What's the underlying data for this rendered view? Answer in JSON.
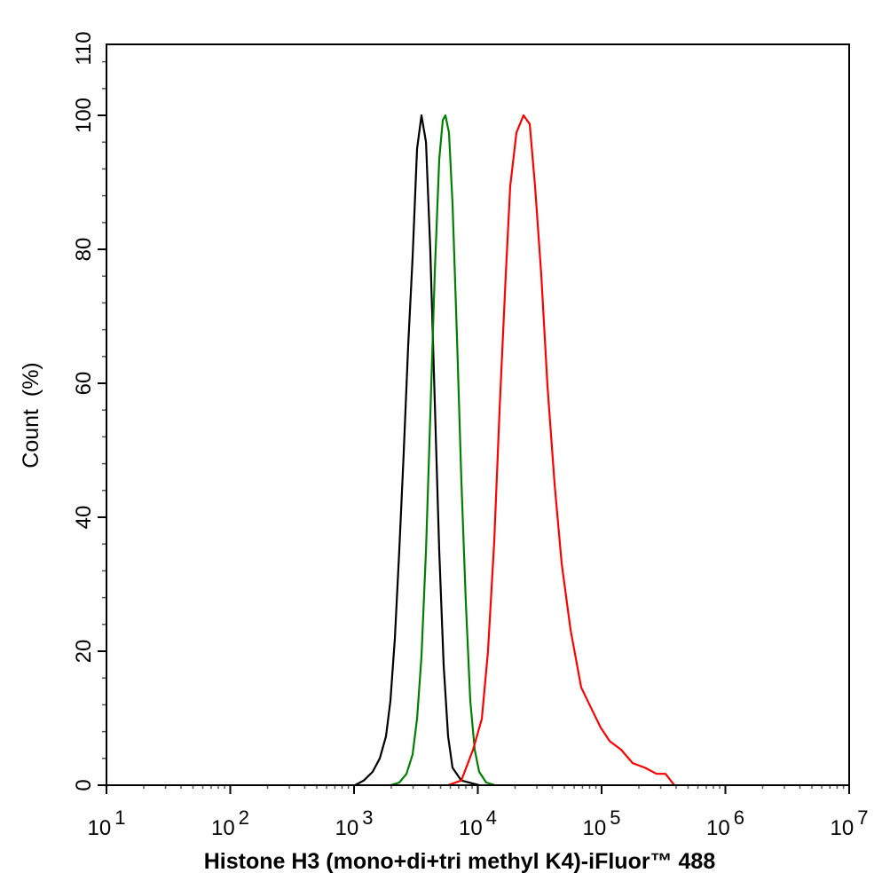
{
  "chart_data": {
    "type": "line",
    "title": "",
    "xlabel": "Histone H3 (mono+di+tri methyl K4)-iFluor™ 488",
    "ylabel": "Count  (%)",
    "xscale": "log",
    "xlim": [
      10,
      10000000
    ],
    "ylim": [
      0,
      110
    ],
    "x_ticks": [
      {
        "base": "10",
        "exp": "1",
        "value": 10
      },
      {
        "base": "10",
        "exp": "2",
        "value": 100
      },
      {
        "base": "10",
        "exp": "3",
        "value": 1000
      },
      {
        "base": "10",
        "exp": "4",
        "value": 10000
      },
      {
        "base": "10",
        "exp": "5",
        "value": 100000
      },
      {
        "base": "10",
        "exp": "6",
        "value": 1000000
      },
      {
        "base": "10",
        "exp": "7",
        "value": 10000000
      }
    ],
    "y_ticks": [
      "0",
      "20",
      "40",
      "60",
      "80",
      "100",
      "110"
    ],
    "grid": false,
    "legend": "none",
    "series": [
      {
        "color": "#000000",
        "x": [
          1016,
          1199,
          1415,
          1614,
          1811,
          1968,
          2138,
          2322,
          2520,
          2735,
          2972,
          3228,
          3508,
          3811,
          4130,
          4487,
          4875,
          5297,
          5754,
          6250,
          7362,
          10250
        ],
        "y": [
          0,
          0.7,
          2.0,
          4.0,
          7.3,
          12.6,
          21.9,
          35.1,
          49.7,
          65.6,
          78.8,
          95,
          100,
          96,
          80,
          57.6,
          35,
          17.9,
          7.3,
          2.6,
          0.7,
          0
        ]
      },
      {
        "color": "#008000",
        "x": [
          1968,
          2322,
          2651,
          2972,
          3228,
          3508,
          3811,
          4130,
          4487,
          4875,
          5210,
          5472,
          5846,
          6250,
          6790,
          7362,
          8000,
          8690,
          9440,
          10250,
          11700,
          13800
        ],
        "y": [
          0,
          0.4,
          1.7,
          4.6,
          9.9,
          19.2,
          35.1,
          55,
          76.2,
          93.4,
          99.3,
          100,
          97.4,
          86.8,
          66.9,
          45.7,
          27.2,
          12.6,
          5.3,
          2.0,
          0.4,
          0
        ]
      },
      {
        "color": "#ff0000",
        "x": [
          5754,
          7362,
          9140,
          10770,
          12080,
          13580,
          15000,
          16830,
          18280,
          20520,
          23400,
          26260,
          28980,
          32560,
          36540,
          41700,
          47560,
          56100,
          68400,
          83400,
          98400,
          116100,
          143900,
          178200,
          224400,
          278000,
          328000,
          387000
        ],
        "y": [
          0,
          0.7,
          5.3,
          9.9,
          19.9,
          36.4,
          56.3,
          76.2,
          89.4,
          97.4,
          100,
          98.7,
          89.4,
          76.2,
          59.6,
          45.0,
          33.1,
          23.2,
          14.6,
          11.3,
          8.6,
          6.6,
          5.3,
          3.3,
          2.6,
          1.7,
          1.7,
          0
        ]
      }
    ]
  }
}
